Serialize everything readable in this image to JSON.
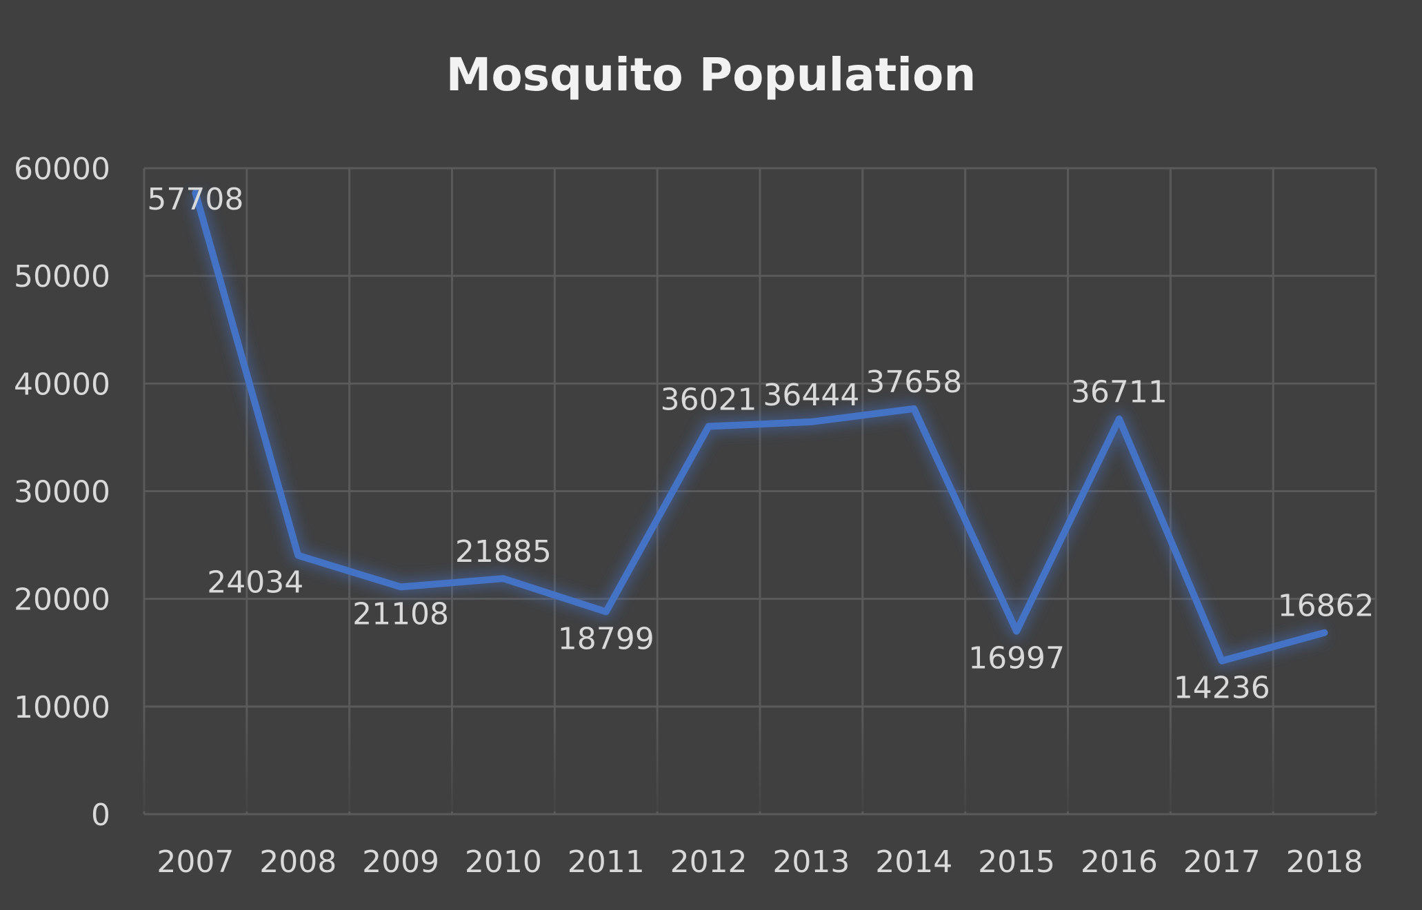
{
  "chart_data": {
    "type": "line",
    "title": "Mosquito Population",
    "xlabel": "",
    "ylabel": "",
    "categories": [
      "2007",
      "2008",
      "2009",
      "2010",
      "2011",
      "2012",
      "2013",
      "2014",
      "2015",
      "2016",
      "2017",
      "2018"
    ],
    "series": [
      {
        "values": [
          57708,
          24034,
          21108,
          21885,
          18799,
          36021,
          36444,
          37658,
          16997,
          36711,
          14236,
          16862
        ],
        "color": "#4472C4"
      }
    ],
    "ylim": [
      0,
      60000
    ],
    "yticks": [
      0,
      10000,
      20000,
      30000,
      40000,
      50000,
      60000
    ],
    "grid": true,
    "legend": "none",
    "data_labels": true
  },
  "colors": {
    "background": "#404040",
    "grid": "#5a5a5a",
    "text": "#d9d9d9",
    "title": "#f2f2f2",
    "line": "#4472C4"
  }
}
